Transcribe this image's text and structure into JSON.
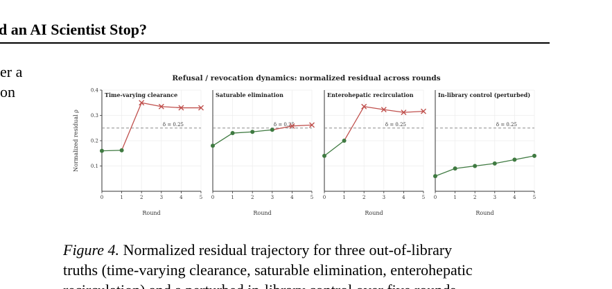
{
  "page": {
    "header_title": "d an AI Scientist Stop?",
    "side_text": [
      "er a",
      "on"
    ]
  },
  "figure": {
    "suptitle": "Refusal / revocation dynamics: normalized residual across rounds",
    "caption": {
      "label": "Figure 4.",
      "line1_rest": " Normalized residual trajectory for three out-of-library",
      "line2": "truths (time-varying clearance, saturable elimination, enterohepatic",
      "line3": "recirculation) and a perturbed in-library control over five rounds"
    }
  },
  "chart_data": [
    {
      "type": "line",
      "title": "Time-varying clearance",
      "xlabel": "Round",
      "ylabel": "Normalized residual ρ",
      "x": [
        0,
        1,
        2,
        3,
        4,
        5
      ],
      "y": [
        0.16,
        0.162,
        0.35,
        0.335,
        0.33,
        0.33
      ],
      "refuse_from_index": 2,
      "threshold": 0.25,
      "threshold_label": "δ = 0.25",
      "xlim": [
        0,
        5
      ],
      "ylim": [
        0,
        0.4
      ],
      "yticks": [
        0.1,
        0.2,
        0.3,
        0.4
      ],
      "xticks": [
        0,
        1,
        2,
        3,
        4,
        5
      ],
      "show_yticks": true
    },
    {
      "type": "line",
      "title": "Saturable elimination",
      "xlabel": "Round",
      "ylabel": "",
      "x": [
        0,
        1,
        2,
        3,
        4,
        5
      ],
      "y": [
        0.18,
        0.23,
        0.235,
        0.243,
        0.258,
        0.262
      ],
      "refuse_from_index": 4,
      "threshold": 0.25,
      "threshold_label": "δ = 0.25",
      "xlim": [
        0,
        5
      ],
      "ylim": [
        0,
        0.4
      ],
      "xticks": [
        0,
        1,
        2,
        3,
        4,
        5
      ],
      "show_yticks": false
    },
    {
      "type": "line",
      "title": "Enterohepatic recirculation",
      "xlabel": "Round",
      "ylabel": "",
      "x": [
        0,
        1,
        2,
        3,
        4,
        5
      ],
      "y": [
        0.14,
        0.2,
        0.335,
        0.323,
        0.312,
        0.316
      ],
      "refuse_from_index": 2,
      "threshold": 0.25,
      "threshold_label": "δ = 0.25",
      "xlim": [
        0,
        5
      ],
      "ylim": [
        0,
        0.4
      ],
      "xticks": [
        0,
        1,
        2,
        3,
        4,
        5
      ],
      "show_yticks": false
    },
    {
      "type": "line",
      "title": "In-library control (perturbed)",
      "xlabel": "Round",
      "ylabel": "",
      "x": [
        0,
        1,
        2,
        3,
        4,
        5
      ],
      "y": [
        0.06,
        0.09,
        0.1,
        0.11,
        0.125,
        0.14
      ],
      "refuse_from_index": null,
      "threshold": 0.25,
      "threshold_label": "δ = 0.25",
      "xlim": [
        0,
        5
      ],
      "ylim": [
        0,
        0.4
      ],
      "xticks": [
        0,
        1,
        2,
        3,
        4,
        5
      ],
      "show_yticks": false
    }
  ],
  "colors": {
    "accept_line": "#3f7a41",
    "refuse_line": "#c0504d",
    "threshold": "#8c8c8c",
    "grid": "#ececec",
    "axis": "#333333"
  }
}
